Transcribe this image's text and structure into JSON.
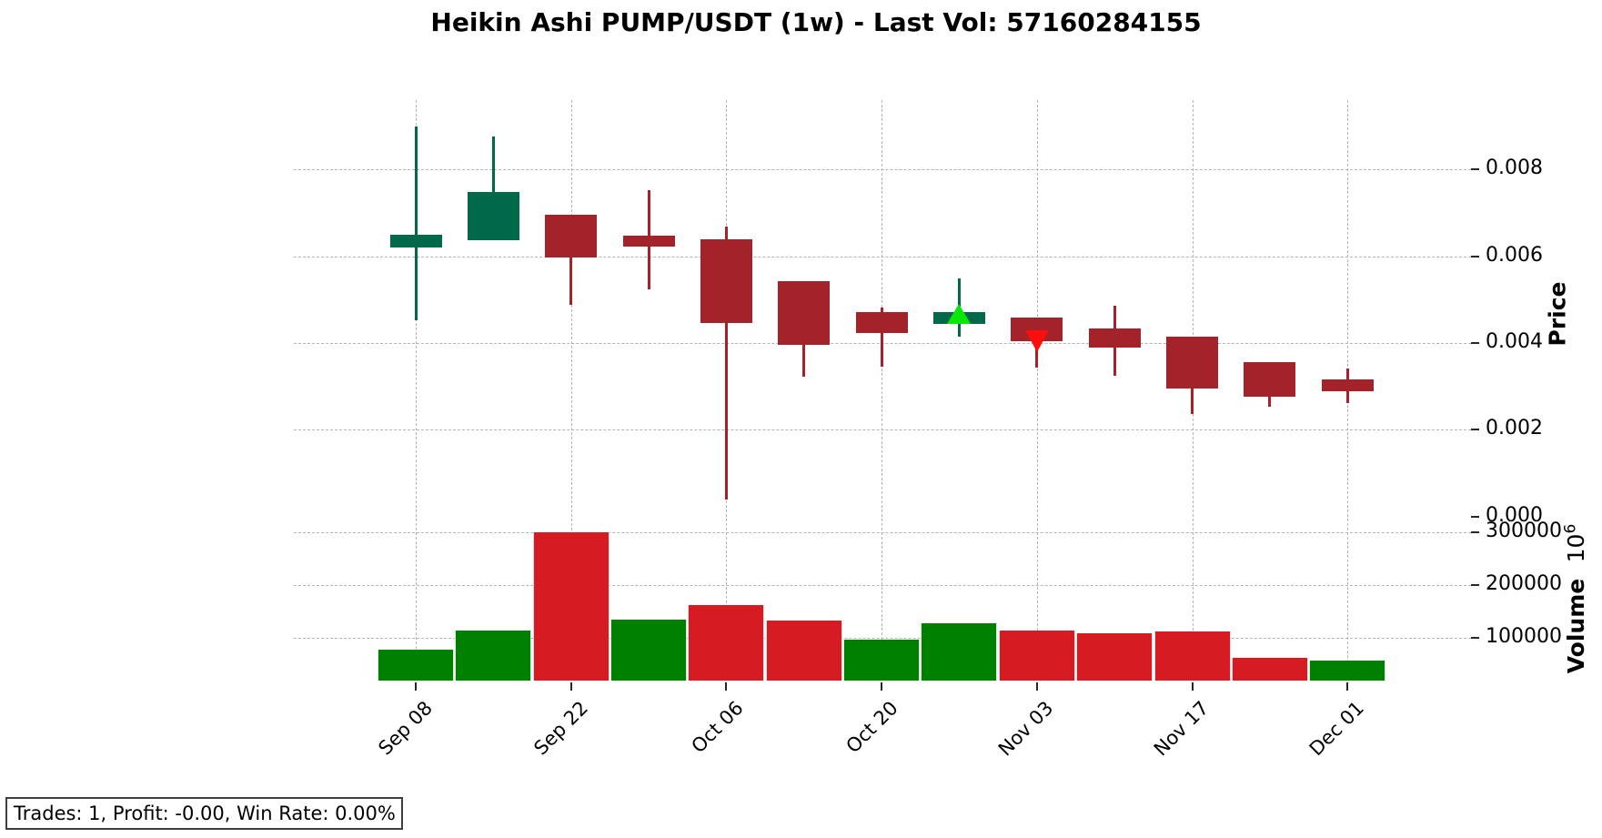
{
  "chart_data": {
    "type": "candlestick",
    "title": "Heikin Ashi PUMP/USDT (1w) - Last Vol: 57160284155",
    "symbol": "PUMP/USDT",
    "timeframe": "1w",
    "last_vol": "57160284155",
    "price_axis": {
      "label": "Price",
      "ticks": [
        "0.008",
        "0.006",
        "0.004",
        "0.002",
        "0.000"
      ],
      "tick_values": [
        0.008,
        0.006,
        0.004,
        0.002,
        0.0
      ],
      "grid_values": [
        0.008,
        0.006,
        0.004,
        0.002
      ],
      "ylim": [
        0.0,
        0.0096
      ],
      "grid": true,
      "side": "right"
    },
    "volume_axis": {
      "label_word": "Volume",
      "label_unit_base": "10",
      "label_unit_exp": "6",
      "ticks": [
        "300000",
        "200000",
        "100000"
      ],
      "tick_values": [
        300000,
        200000,
        100000
      ],
      "grid_values": [
        300000,
        200000,
        100000
      ],
      "ylim": [
        15000,
        330000
      ],
      "grid": true,
      "side": "right"
    },
    "x_axis": {
      "tick_labels": [
        "Sep 08",
        "Sep 22",
        "Oct 06",
        "Oct 20",
        "Nov 03",
        "Nov 17",
        "Dec 01"
      ],
      "tick_indices": [
        0,
        2,
        4,
        6,
        8,
        10,
        12
      ],
      "label_rotation_deg": 45
    },
    "categories": [
      "Sep 08",
      "Sep 15",
      "Sep 22",
      "Sep 29",
      "Oct 06",
      "Oct 13",
      "Oct 20",
      "Oct 27",
      "Nov 03",
      "Nov 10",
      "Nov 17",
      "Nov 24",
      "Dec 01"
    ],
    "candles": [
      {
        "date": "Sep 08",
        "open": 0.0062,
        "high": 0.009,
        "low": 0.00453,
        "close": 0.0065,
        "dir": "up",
        "volume": 78000,
        "volume_dir": "up"
      },
      {
        "date": "Sep 15",
        "open": 0.00637,
        "high": 0.00876,
        "low": 0.00637,
        "close": 0.00748,
        "dir": "up",
        "volume": 115000,
        "volume_dir": "up"
      },
      {
        "date": "Sep 22",
        "open": 0.00696,
        "high": 0.00696,
        "low": 0.00488,
        "close": 0.00598,
        "dir": "down",
        "volume": 299000,
        "volume_dir": "down"
      },
      {
        "date": "Sep 29",
        "open": 0.00647,
        "high": 0.00752,
        "low": 0.00523,
        "close": 0.00623,
        "dir": "down",
        "volume": 135000,
        "volume_dir": "up"
      },
      {
        "date": "Oct 06",
        "open": 0.00638,
        "high": 0.00668,
        "low": 0.0004,
        "close": 0.00446,
        "dir": "down",
        "volume": 162000,
        "volume_dir": "down"
      },
      {
        "date": "Oct 13",
        "open": 0.00543,
        "high": 0.00543,
        "low": 0.00322,
        "close": 0.00396,
        "dir": "down",
        "volume": 134000,
        "volume_dir": "down"
      },
      {
        "date": "Oct 20",
        "open": 0.00472,
        "high": 0.00482,
        "low": 0.00345,
        "close": 0.00422,
        "dir": "down",
        "volume": 97000,
        "volume_dir": "up"
      },
      {
        "date": "Oct 27",
        "open": 0.00444,
        "high": 0.00549,
        "low": 0.00415,
        "close": 0.00472,
        "dir": "up",
        "volume": 128000,
        "volume_dir": "up"
      },
      {
        "date": "Nov 03",
        "open": 0.00459,
        "high": 0.00459,
        "low": 0.00343,
        "close": 0.00405,
        "dir": "down",
        "volume": 115000,
        "volume_dir": "down"
      },
      {
        "date": "Nov 10",
        "open": 0.00434,
        "high": 0.00487,
        "low": 0.00324,
        "close": 0.0039,
        "dir": "down",
        "volume": 109000,
        "volume_dir": "down"
      },
      {
        "date": "Nov 17",
        "open": 0.00415,
        "high": 0.00415,
        "low": 0.00237,
        "close": 0.00296,
        "dir": "down",
        "volume": 112000,
        "volume_dir": "down"
      },
      {
        "date": "Nov 24",
        "open": 0.00357,
        "high": 0.00357,
        "low": 0.00253,
        "close": 0.00277,
        "dir": "down",
        "volume": 63000,
        "volume_dir": "down"
      },
      {
        "date": "Dec 01",
        "open": 0.00316,
        "high": 0.00341,
        "low": 0.00262,
        "close": 0.00289,
        "dir": "down",
        "volume": 57160,
        "volume_dir": "up"
      }
    ],
    "volume_unit": "1e6",
    "markers": [
      {
        "type": "buy",
        "shape": "triangle-up",
        "date": "Oct 27",
        "index": 7,
        "price": 0.00467
      },
      {
        "type": "sell",
        "shape": "triangle-down",
        "date": "Nov 03",
        "index": 8,
        "price": 0.00404
      }
    ]
  },
  "stats_box": {
    "text": "Trades: 1, Profit: -0.00, Win Rate: 0.00%"
  },
  "colors": {
    "candle_up": "#00694a",
    "candle_down": "#a4232a",
    "volume_up": "#008000",
    "volume_down": "#d71b23",
    "marker_buy": "#0ae80a",
    "marker_sell": "#fa0f0c",
    "grid": "#b4b4b4",
    "tick": "#262626",
    "text": "#000000",
    "background": "#ffffff",
    "stats_border": "#3f3f3f"
  }
}
